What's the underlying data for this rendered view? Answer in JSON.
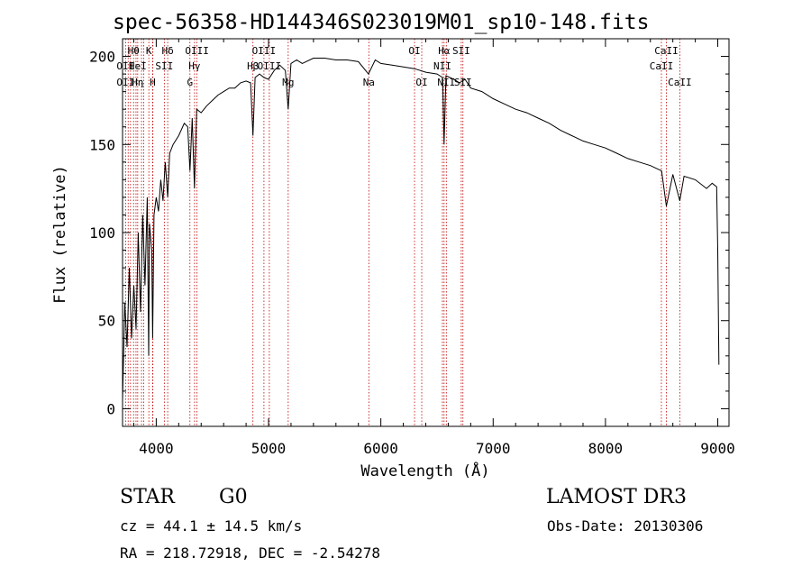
{
  "chart_data": {
    "type": "line",
    "title": "spec-56358-HD144346S023019M01_sp10-148.fits",
    "xlabel": "Wavelength (Å)",
    "ylabel": "Flux (relative)",
    "xlim": [
      3700,
      9100
    ],
    "ylim": [
      -10,
      210
    ],
    "xticks": [
      4000,
      5000,
      6000,
      7000,
      8000,
      9000
    ],
    "xtick_labels": [
      "4000",
      "5000",
      "6000",
      "7000",
      "8000",
      "9000"
    ],
    "yticks": [
      0,
      50,
      100,
      150,
      200
    ],
    "ytick_labels": [
      "0",
      "50",
      "100",
      "150",
      "200"
    ],
    "grid": false,
    "series": [
      {
        "name": "flux",
        "x": [
          3700,
          3720,
          3740,
          3760,
          3780,
          3800,
          3820,
          3840,
          3860,
          3880,
          3900,
          3920,
          3933,
          3940,
          3960,
          3968,
          3980,
          4000,
          4020,
          4040,
          4060,
          4080,
          4102,
          4120,
          4150,
          4200,
          4250,
          4280,
          4300,
          4320,
          4340,
          4360,
          4400,
          4450,
          4500,
          4550,
          4600,
          4650,
          4700,
          4750,
          4800,
          4840,
          4861,
          4880,
          4920,
          4960,
          5000,
          5050,
          5100,
          5150,
          5175,
          5200,
          5250,
          5300,
          5400,
          5500,
          5600,
          5700,
          5800,
          5890,
          5950,
          6000,
          6100,
          6200,
          6300,
          6400,
          6500,
          6550,
          6563,
          6580,
          6650,
          6700,
          6750,
          6800,
          6900,
          7000,
          7100,
          7200,
          7300,
          7400,
          7500,
          7600,
          7700,
          7800,
          7900,
          8000,
          8100,
          8200,
          8300,
          8400,
          8500,
          8542,
          8600,
          8662,
          8700,
          8800,
          8900,
          8950,
          8990,
          9000,
          9010
        ],
        "y": [
          5,
          60,
          35,
          80,
          40,
          70,
          45,
          100,
          55,
          110,
          70,
          120,
          30,
          105,
          90,
          40,
          110,
          120,
          112,
          130,
          118,
          140,
          120,
          145,
          150,
          155,
          162,
          160,
          135,
          165,
          125,
          170,
          168,
          172,
          175,
          178,
          180,
          182,
          182,
          185,
          186,
          185,
          155,
          188,
          190,
          188,
          187,
          192,
          195,
          192,
          170,
          196,
          198,
          196,
          199,
          199,
          198,
          198,
          197,
          190,
          198,
          196,
          195,
          194,
          193,
          191,
          190,
          188,
          150,
          189,
          187,
          185,
          187,
          182,
          180,
          176,
          173,
          170,
          168,
          165,
          162,
          158,
          155,
          152,
          150,
          148,
          145,
          142,
          140,
          138,
          135,
          115,
          133,
          118,
          132,
          130,
          125,
          128,
          126,
          90,
          25
        ]
      }
    ],
    "line_markers": [
      {
        "wavelength": 3727,
        "label": "OII"
      },
      {
        "wavelength": 3750,
        "label": "OII"
      },
      {
        "wavelength": 3771,
        "label": "Hη"
      },
      {
        "wavelength": 3798,
        "label": "Hθ"
      },
      {
        "wavelength": 3820,
        "label": "HeI"
      },
      {
        "wavelength": 3835,
        "label": "Hη"
      },
      {
        "wavelength": 3869,
        "label": "H"
      },
      {
        "wavelength": 3889,
        "label": "K"
      },
      {
        "wavelength": 3934,
        "label": "K"
      },
      {
        "wavelength": 3968,
        "label": "H"
      },
      {
        "wavelength": 3970,
        "label": "SII"
      },
      {
        "wavelength": 4072,
        "label": "SII"
      },
      {
        "wavelength": 4102,
        "label": "Hδ"
      },
      {
        "wavelength": 4300,
        "label": "G"
      },
      {
        "wavelength": 4341,
        "label": "Hγ"
      },
      {
        "wavelength": 4363,
        "label": "OIII"
      },
      {
        "wavelength": 4861,
        "label": "Hβ"
      },
      {
        "wavelength": 4959,
        "label": "OIII"
      },
      {
        "wavelength": 5007,
        "label": "OIII"
      },
      {
        "wavelength": 5175,
        "label": "Mg"
      },
      {
        "wavelength": 5893,
        "label": "Na"
      },
      {
        "wavelength": 6300,
        "label": "OI"
      },
      {
        "wavelength": 6364,
        "label": "OI"
      },
      {
        "wavelength": 6548,
        "label": "NII"
      },
      {
        "wavelength": 6563,
        "label": "Hα"
      },
      {
        "wavelength": 6583,
        "label": "NII"
      },
      {
        "wavelength": 6716,
        "label": "SII"
      },
      {
        "wavelength": 6731,
        "label": "SII"
      },
      {
        "wavelength": 8498,
        "label": "CaII"
      },
      {
        "wavelength": 8542,
        "label": "CaII"
      },
      {
        "wavelength": 8662,
        "label": "CaII"
      }
    ],
    "line_labels": [
      {
        "text": "Hθ",
        "wavelength": 3798,
        "row": 0
      },
      {
        "text": "K",
        "wavelength": 3934,
        "row": 0
      },
      {
        "text": "Hδ",
        "wavelength": 4102,
        "row": 0
      },
      {
        "text": "OIII",
        "wavelength": 4363,
        "row": 0
      },
      {
        "text": "OIII",
        "wavelength": 4959,
        "row": 0
      },
      {
        "text": "OI",
        "wavelength": 6300,
        "row": 0
      },
      {
        "text": "Hα",
        "wavelength": 6563,
        "row": 0
      },
      {
        "text": "SII",
        "wavelength": 6716,
        "row": 0
      },
      {
        "text": "CaII",
        "wavelength": 8542,
        "row": 0
      },
      {
        "text": "OII",
        "wavelength": 3727,
        "row": 1
      },
      {
        "text": "HeI",
        "wavelength": 3835,
        "row": 1
      },
      {
        "text": "SII",
        "wavelength": 4072,
        "row": 1
      },
      {
        "text": "Hγ",
        "wavelength": 4341,
        "row": 1
      },
      {
        "text": "OIII",
        "wavelength": 5007,
        "row": 1
      },
      {
        "text": "Hβ",
        "wavelength": 4861,
        "row": 1
      },
      {
        "text": "NII",
        "wavelength": 6548,
        "row": 1
      },
      {
        "text": "CaII",
        "wavelength": 8498,
        "row": 1
      },
      {
        "text": "OII",
        "wavelength": 3727,
        "row": 2
      },
      {
        "text": "Hη",
        "wavelength": 3835,
        "row": 2
      },
      {
        "text": "H",
        "wavelength": 3968,
        "row": 2
      },
      {
        "text": "G",
        "wavelength": 4300,
        "row": 2
      },
      {
        "text": "Mg",
        "wavelength": 5175,
        "row": 2
      },
      {
        "text": "Na",
        "wavelength": 5893,
        "row": 2
      },
      {
        "text": "OI",
        "wavelength": 6364,
        "row": 2
      },
      {
        "text": "NII",
        "wavelength": 6583,
        "row": 2
      },
      {
        "text": "SII",
        "wavelength": 6731,
        "row": 2
      },
      {
        "text": "CaII",
        "wavelength": 8662,
        "row": 2
      }
    ],
    "colors": {
      "spectrum": "#000000",
      "markers": "#c00000",
      "axes": "#000000"
    }
  },
  "info": {
    "object_type": "STAR",
    "subclass": "G0",
    "survey": "LAMOST DR3",
    "redshift": "cz = 44.1 ± 14.5 km/s",
    "obs_date": "Obs-Date: 20130306",
    "coords": "RA = 218.72918, DEC =  -2.54278"
  }
}
